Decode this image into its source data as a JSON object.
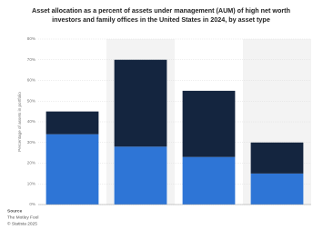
{
  "chart_data": {
    "type": "stacked-bar",
    "title_lines": [
      "Asset allocation as a percent of assets under management (AUM) of high net worth",
      "investors and family offices in the United States in 2024, by asset type"
    ],
    "y_label": "Percentage of assets in portfolio",
    "categories": [
      null,
      null,
      null,
      null
    ],
    "series": [
      {
        "color": "#2e75d6",
        "values": [
          34,
          28,
          23,
          15
        ]
      },
      {
        "color": "#14253f",
        "values": [
          11,
          42,
          32,
          15
        ]
      }
    ],
    "ylim": [
      0,
      80
    ],
    "yticks": [
      {
        "value": 0,
        "label": "0%"
      },
      {
        "value": 10,
        "label": "10%"
      },
      {
        "value": 20,
        "label": "20%"
      },
      {
        "value": 30,
        "label": "30%"
      },
      {
        "value": 40,
        "label": "40%"
      },
      {
        "value": 50,
        "label": "50%"
      },
      {
        "value": 60,
        "label": "60%"
      },
      {
        "value": 70,
        "label": "70%"
      },
      {
        "value": 80,
        "label": "80%"
      }
    ],
    "grid": true,
    "source": {
      "heading": "Source",
      "lines": [
        "The Motley Fool",
        "© Statista 2025"
      ]
    }
  }
}
